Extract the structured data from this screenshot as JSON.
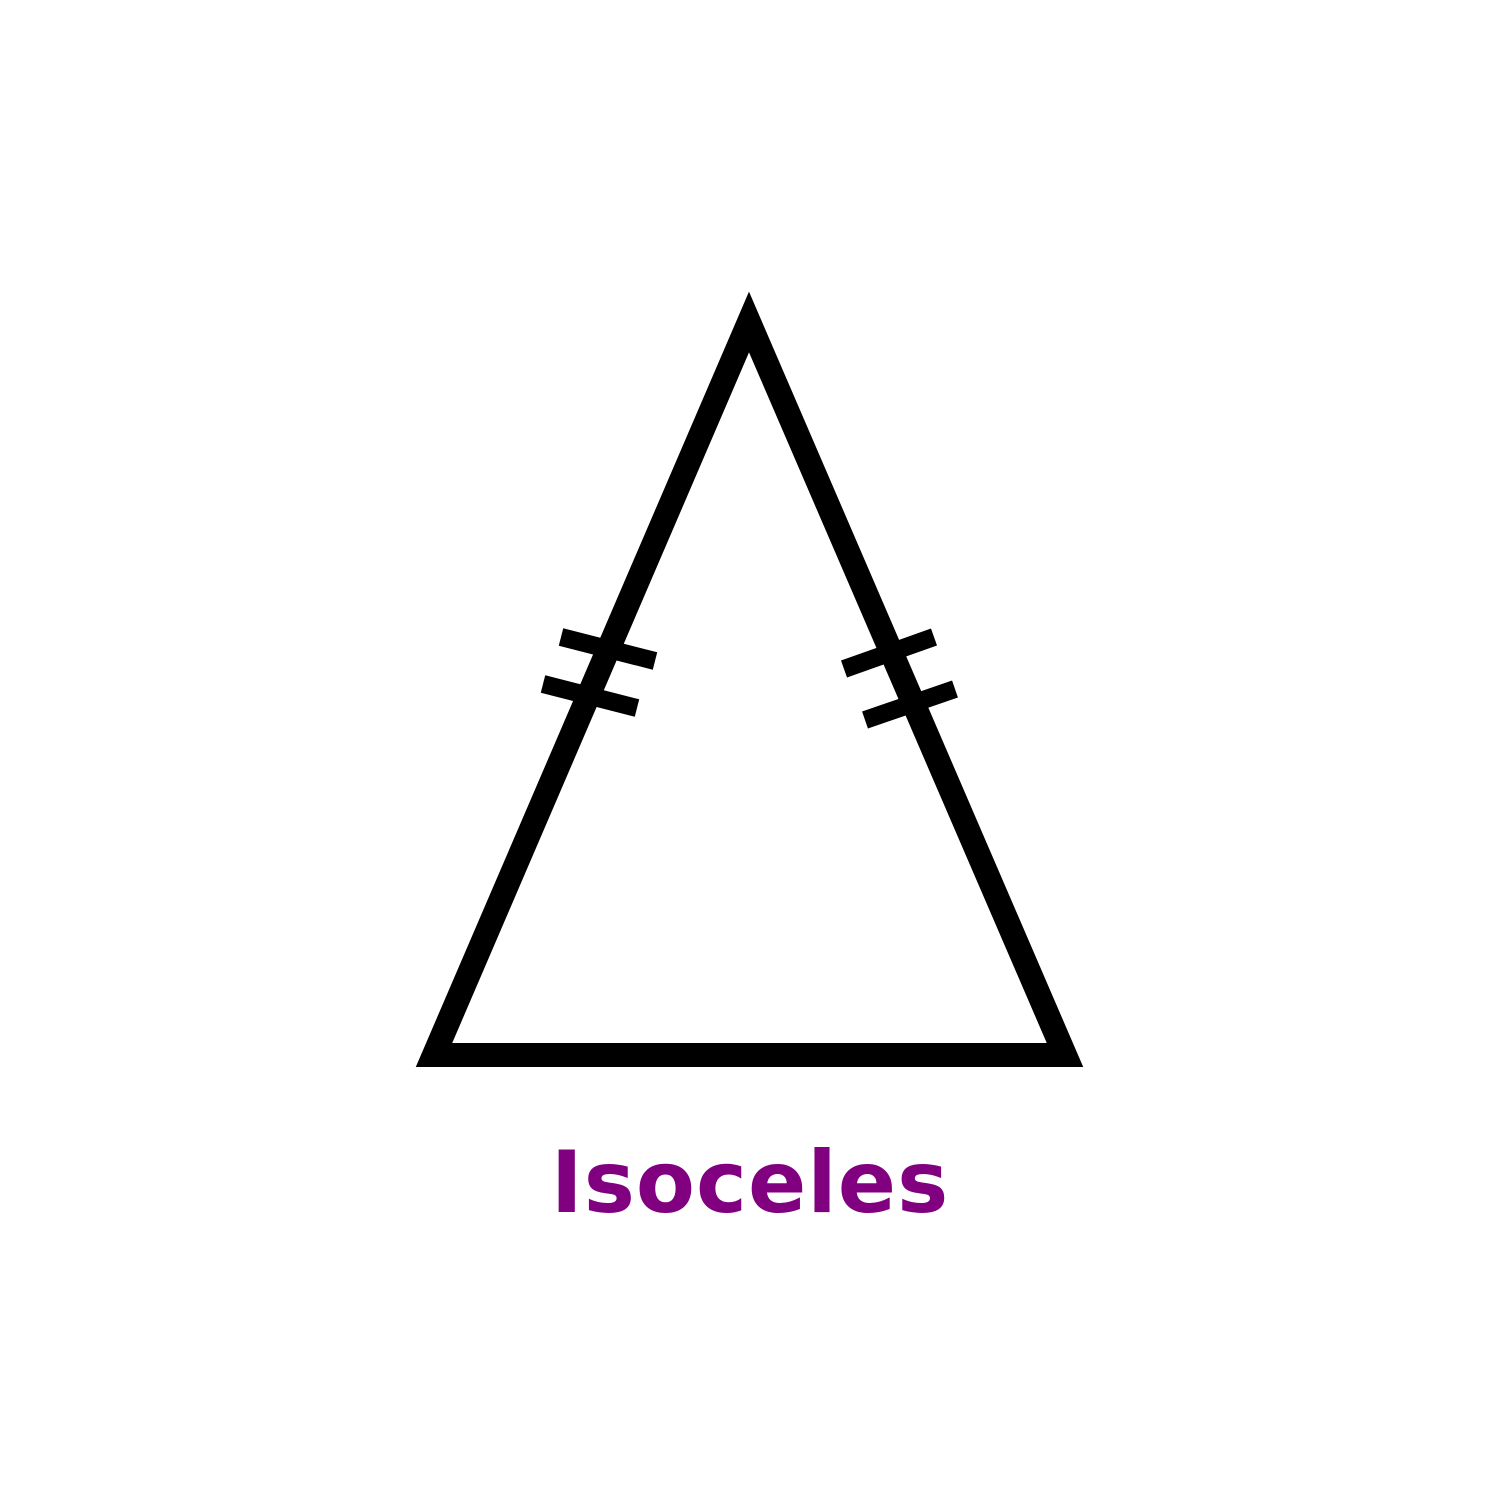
{
  "label": {
    "text": "Isoceles",
    "color": "#800080"
  },
  "shape": {
    "type": "isosceles-triangle",
    "stroke_color": "#000000",
    "fill_color": "#ffffff",
    "tick_marks_per_equal_side": 2
  }
}
